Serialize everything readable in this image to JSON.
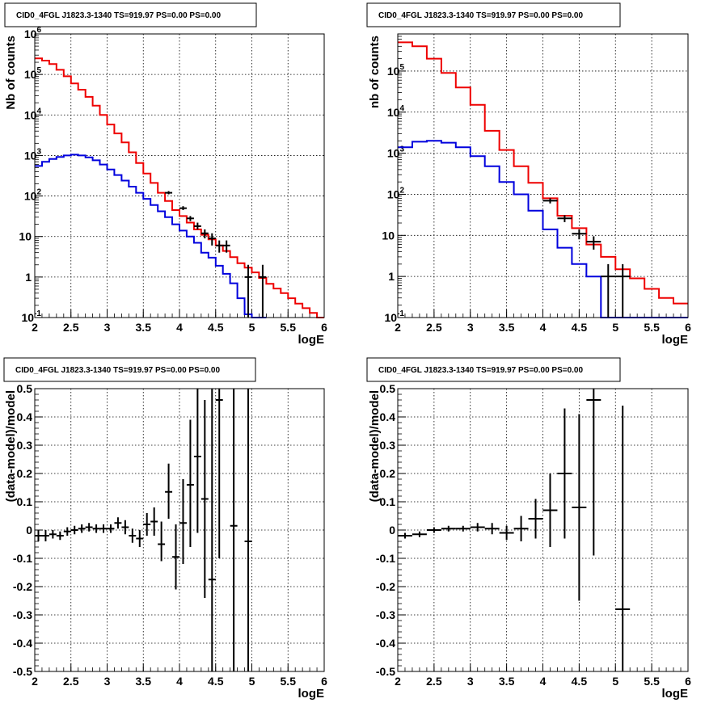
{
  "chart_data": [
    {
      "type": "line",
      "title": "CID0_4FGL J1823.3-1340 TS=919.97 PS=0.00 PS=0.00",
      "xlabel": "logE",
      "ylabel": "Nb of counts",
      "yscale": "log",
      "xlim": [
        2,
        6
      ],
      "ylim": [
        0.1,
        1000000
      ],
      "grid": true,
      "xticks": [
        "2",
        "2.5",
        "3",
        "3.5",
        "4",
        "4.5",
        "5",
        "5.5",
        "6"
      ],
      "yticks": [
        {
          "v": 0.1,
          "base": "10",
          "exp": "-1"
        },
        {
          "v": 1,
          "base": "1",
          "exp": ""
        },
        {
          "v": 10,
          "base": "10",
          "exp": ""
        },
        {
          "v": 100,
          "base": "10",
          "exp": "2"
        },
        {
          "v": 1000,
          "base": "10",
          "exp": "3"
        },
        {
          "v": 10000,
          "base": "10",
          "exp": "4"
        },
        {
          "v": 100000,
          "base": "10",
          "exp": "5"
        },
        {
          "v": 1000000,
          "base": "10",
          "exp": "6"
        }
      ],
      "series": [
        {
          "color": "#ee0000",
          "bin_width": 0.1,
          "x": [
            2.0,
            2.1,
            2.2,
            2.3,
            2.4,
            2.5,
            2.6,
            2.7,
            2.8,
            2.9,
            3.0,
            3.1,
            3.2,
            3.3,
            3.4,
            3.5,
            3.6,
            3.7,
            3.8,
            3.9,
            4.0,
            4.1,
            4.2,
            4.3,
            4.4,
            4.5,
            4.6,
            4.7,
            4.8,
            4.9,
            5.0,
            5.1,
            5.2,
            5.3,
            5.4,
            5.5,
            5.6,
            5.7,
            5.8,
            5.9
          ],
          "y": [
            250000,
            220000,
            180000,
            130000,
            90000,
            60000,
            42000,
            28000,
            17000,
            10000,
            5800,
            3500,
            2100,
            1200,
            650,
            360,
            210,
            120,
            75,
            45,
            32,
            22,
            15,
            11,
            8.5,
            6.0,
            4.4,
            3.1,
            2.2,
            1.7,
            1.3,
            0.95,
            0.68,
            0.52,
            0.4,
            0.3,
            0.22,
            0.17,
            0.13,
            0.1
          ]
        },
        {
          "color": "#0000dd",
          "bin_width": 0.1,
          "x": [
            2.0,
            2.1,
            2.2,
            2.3,
            2.4,
            2.5,
            2.6,
            2.7,
            2.8,
            2.9,
            3.0,
            3.1,
            3.2,
            3.3,
            3.4,
            3.5,
            3.6,
            3.7,
            3.8,
            3.9,
            4.0,
            4.1,
            4.2,
            4.3,
            4.4,
            4.5,
            4.6,
            4.7,
            4.8,
            4.9,
            5.0,
            5.1
          ],
          "y": [
            550,
            700,
            820,
            920,
            1000,
            1050,
            1000,
            900,
            760,
            600,
            450,
            330,
            240,
            170,
            120,
            85,
            60,
            42,
            30,
            20,
            14,
            10,
            7,
            4,
            3,
            1.9,
            1.2,
            0.7,
            0.3,
            0.12,
            0.1,
            0.1
          ]
        }
      ],
      "points": {
        "x": [
          3.85,
          4.05,
          4.15,
          4.25,
          4.35,
          4.45,
          4.55,
          4.65,
          4.95,
          5.15
        ],
        "y": [
          120,
          50,
          28,
          18,
          12,
          9,
          6,
          6,
          1,
          1
        ],
        "ylo": [
          110,
          45,
          24,
          15,
          9,
          6,
          4,
          4,
          0.1,
          0.1
        ],
        "yhi": [
          132,
          56,
          32,
          22,
          15,
          12,
          8,
          8,
          2,
          2
        ],
        "xerr": 0.05
      }
    },
    {
      "type": "line",
      "title": "CID0_4FGL J1823.3-1340 TS=919.97 PS=0.00 PS=0.00",
      "xlabel": "logE",
      "ylabel": "nb of counts",
      "yscale": "log",
      "xlim": [
        2,
        6
      ],
      "ylim": [
        0.1,
        800000
      ],
      "grid": true,
      "xticks": [
        "2",
        "2.5",
        "3",
        "3.5",
        "4",
        "4.5",
        "5",
        "5.5",
        "6"
      ],
      "yticks": [
        {
          "v": 0.1,
          "base": "10",
          "exp": "-1"
        },
        {
          "v": 1,
          "base": "1",
          "exp": ""
        },
        {
          "v": 10,
          "base": "10",
          "exp": ""
        },
        {
          "v": 100,
          "base": "10",
          "exp": "2"
        },
        {
          "v": 1000,
          "base": "10",
          "exp": "3"
        },
        {
          "v": 10000,
          "base": "10",
          "exp": "4"
        },
        {
          "v": 100000,
          "base": "10",
          "exp": "5"
        }
      ],
      "series": [
        {
          "color": "#ee0000",
          "bin_width": 0.2,
          "x": [
            2.0,
            2.2,
            2.4,
            2.6,
            2.8,
            3.0,
            3.2,
            3.4,
            3.6,
            3.8,
            4.0,
            4.2,
            4.4,
            4.6,
            4.8,
            5.0,
            5.2,
            5.4,
            5.6,
            5.8
          ],
          "y": [
            500000,
            400000,
            200000,
            90000,
            40000,
            15000,
            3500,
            1200,
            480,
            190,
            80,
            30,
            15,
            6,
            3,
            1.5,
            0.9,
            0.5,
            0.3,
            0.22
          ]
        },
        {
          "color": "#0000dd",
          "bin_width": 0.2,
          "x": [
            2.0,
            2.2,
            2.4,
            2.6,
            2.8,
            3.0,
            3.2,
            3.4,
            3.6,
            3.8,
            4.0,
            4.2,
            4.4,
            4.6,
            4.8,
            5.0,
            5.2,
            5.4,
            5.6,
            5.8
          ],
          "y": [
            1400,
            1900,
            2000,
            1800,
            1400,
            850,
            480,
            200,
            100,
            40,
            14,
            5,
            2,
            1,
            0.1,
            0.1,
            0.1,
            0.1,
            0.1,
            0.1
          ]
        }
      ],
      "points": {
        "x": [
          4.1,
          4.3,
          4.5,
          4.7,
          4.9,
          5.1
        ],
        "y": [
          70,
          26,
          11,
          7,
          1,
          1
        ],
        "ylo": [
          60,
          21,
          8,
          4.5,
          0.1,
          0.1
        ],
        "yhi": [
          80,
          31,
          14,
          9.5,
          2,
          2
        ],
        "xerr": 0.1
      }
    },
    {
      "type": "scatter",
      "title": "CID0_4FGL J1823.3-1340 TS=919.97 PS=0.00 PS=0.00",
      "xlabel": "logE",
      "ylabel": "(data-model)/model",
      "yscale": "linear",
      "xlim": [
        2,
        6
      ],
      "ylim": [
        -0.5,
        0.5
      ],
      "grid": true,
      "xticks": [
        "2",
        "2.5",
        "3",
        "3.5",
        "4",
        "4.5",
        "5",
        "5.5",
        "6"
      ],
      "yticks": [
        "-0.5",
        "-0.4",
        "-0.3",
        "-0.2",
        "-0.1",
        "0",
        "0.1",
        "0.2",
        "0.3",
        "0.4",
        "0.5"
      ],
      "points": {
        "x": [
          2.05,
          2.15,
          2.25,
          2.35,
          2.45,
          2.55,
          2.65,
          2.75,
          2.85,
          2.95,
          3.05,
          3.15,
          3.25,
          3.35,
          3.45,
          3.55,
          3.65,
          3.75,
          3.85,
          3.95,
          4.05,
          4.15,
          4.25,
          4.35,
          4.45,
          4.55,
          4.75,
          4.95
        ],
        "y": [
          -0.02,
          -0.02,
          -0.015,
          -0.02,
          -0.005,
          0.0,
          0.005,
          0.01,
          0.005,
          0.005,
          0.005,
          0.025,
          0.01,
          -0.02,
          -0.03,
          0.02,
          0.03,
          -0.05,
          0.135,
          -0.095,
          0.025,
          0.16,
          0.26,
          0.11,
          -0.175,
          0.46,
          0.015,
          -0.04
        ],
        "ylo": [
          -0.04,
          -0.04,
          -0.03,
          -0.035,
          -0.02,
          -0.015,
          -0.01,
          -0.005,
          -0.01,
          -0.01,
          -0.01,
          0.005,
          -0.015,
          -0.045,
          -0.06,
          -0.02,
          -0.02,
          -0.11,
          0.04,
          -0.21,
          -0.12,
          -0.06,
          -0.01,
          -0.24,
          -0.5,
          -0.1,
          -0.5,
          -0.5
        ],
        "yhi": [
          0.0,
          0.0,
          0.0,
          -0.005,
          0.01,
          0.015,
          0.02,
          0.025,
          0.02,
          0.02,
          0.02,
          0.045,
          0.035,
          0.005,
          0.0,
          0.06,
          0.08,
          0.03,
          0.235,
          0.02,
          0.18,
          0.39,
          0.5,
          0.46,
          0.5,
          0.5,
          0.5,
          0.5
        ],
        "xerr": 0.05
      }
    },
    {
      "type": "scatter",
      "title": "CID0_4FGL J1823.3-1340 TS=919.97 PS=0.00 PS=0.00",
      "xlabel": "logE",
      "ylabel": "(data-model)/model",
      "yscale": "linear",
      "xlim": [
        2,
        6
      ],
      "ylim": [
        -0.5,
        0.5
      ],
      "grid": true,
      "xticks": [
        "2",
        "2.5",
        "3",
        "3.5",
        "4",
        "4.5",
        "5",
        "5.5",
        "6"
      ],
      "yticks": [
        "-0.5",
        "-0.4",
        "-0.3",
        "-0.2",
        "-0.1",
        "0",
        "0.1",
        "0.2",
        "0.3",
        "0.4",
        "0.5"
      ],
      "points": {
        "x": [
          2.1,
          2.3,
          2.5,
          2.7,
          2.9,
          3.1,
          3.3,
          3.5,
          3.7,
          3.9,
          4.1,
          4.3,
          4.5,
          4.7,
          5.1
        ],
        "y": [
          -0.02,
          -0.015,
          0.0,
          0.005,
          0.005,
          0.01,
          0.005,
          -0.01,
          0.005,
          0.04,
          0.07,
          0.2,
          0.08,
          0.46,
          -0.28
        ],
        "ylo": [
          -0.03,
          -0.025,
          -0.01,
          -0.005,
          -0.005,
          -0.005,
          -0.015,
          -0.035,
          -0.04,
          -0.03,
          -0.06,
          -0.03,
          -0.25,
          -0.09,
          -0.5
        ],
        "yhi": [
          -0.01,
          -0.005,
          0.01,
          0.015,
          0.015,
          0.025,
          0.025,
          0.015,
          0.05,
          0.11,
          0.2,
          0.43,
          0.41,
          0.5,
          0.44
        ],
        "xerr": 0.1
      }
    }
  ]
}
